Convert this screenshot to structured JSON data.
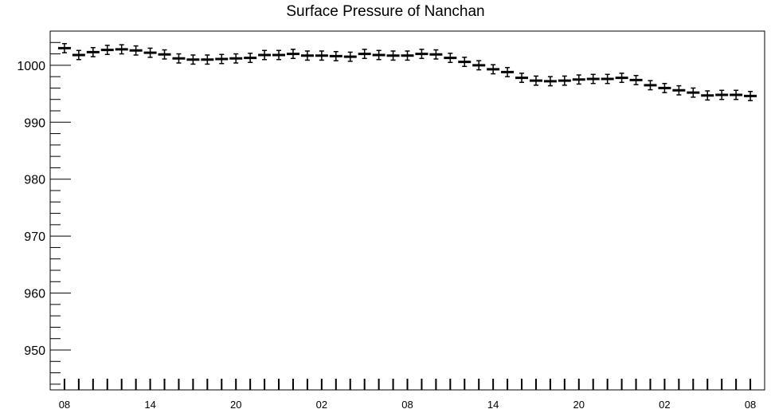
{
  "chart_data": {
    "type": "scatter",
    "title": "Surface Pressure of Nanchan",
    "xlabel": "",
    "ylabel": "",
    "ylim": [
      943,
      1006
    ],
    "y_ticks": [
      950,
      960,
      970,
      980,
      990,
      1000
    ],
    "x_tick_labels": [
      "08",
      "14",
      "20",
      "02",
      "08",
      "14",
      "20",
      "02",
      "08"
    ],
    "x_tick_hours": [
      0,
      6,
      12,
      18,
      24,
      30,
      36,
      42,
      48
    ],
    "x_range_hours": [
      -1,
      49
    ],
    "error_half_width": 0.8,
    "series": [
      {
        "x_hours": [
          0,
          1,
          2,
          3,
          4,
          5,
          6,
          7,
          8,
          9,
          10,
          11,
          12,
          13,
          14,
          15,
          16,
          17,
          18,
          19,
          20,
          21,
          22,
          23,
          24,
          25,
          26,
          27,
          28,
          29,
          30,
          31,
          32,
          33,
          34,
          35,
          36,
          37,
          38,
          39,
          40,
          41,
          42,
          43,
          44,
          45,
          46,
          47,
          48
        ],
        "values": [
          1003.0,
          1001.8,
          1002.3,
          1002.7,
          1002.8,
          1002.6,
          1002.2,
          1001.9,
          1001.2,
          1001.0,
          1001.0,
          1001.1,
          1001.2,
          1001.3,
          1001.8,
          1001.8,
          1002.0,
          1001.7,
          1001.7,
          1001.6,
          1001.5,
          1002.0,
          1001.8,
          1001.7,
          1001.7,
          1002.0,
          1001.9,
          1001.3,
          1000.6,
          1000.0,
          999.3,
          998.8,
          997.8,
          997.3,
          997.2,
          997.3,
          997.5,
          997.6,
          997.6,
          997.8,
          997.4,
          996.5,
          996.0,
          995.6,
          995.2,
          994.7,
          994.8,
          994.8,
          994.6
        ]
      }
    ],
    "grid": false,
    "legend": "none"
  }
}
